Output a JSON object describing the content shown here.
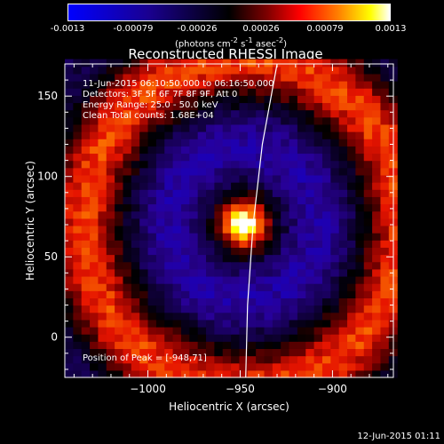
{
  "colorbar": {
    "ticks": [
      "-0.0013",
      "-0.00079",
      "-0.00026",
      "0.00026",
      "0.00079",
      "0.0013"
    ],
    "unit_html": "(photons cm<sup>-2</sup> s<sup>-1</sup> asec<sup>-2</sup>)",
    "range": [
      -0.0013,
      0.0013
    ]
  },
  "chart_data": {
    "type": "heatmap",
    "title": "Reconstructed RHESSI Image",
    "xlabel": "Heliocentric X (arcsec)",
    "ylabel": "Heliocentric Y (arcsec)",
    "xlim": [
      -1045,
      -867
    ],
    "ylim": [
      -25,
      170
    ],
    "xticks": [
      -1000,
      -950,
      -900
    ],
    "xtick_labels": [
      "−1000",
      "−950",
      "−900"
    ],
    "yticks": [
      0,
      50,
      100,
      150
    ],
    "ytick_labels": [
      "0",
      "50",
      "100",
      "150"
    ],
    "peak": [
      -948,
      71
    ],
    "limb_curve": [
      [
        -930,
        170
      ],
      [
        -938,
        120
      ],
      [
        -943,
        70
      ],
      [
        -946,
        20
      ],
      [
        -947,
        -25
      ]
    ],
    "annotations": [
      "11-Jun-2015 06:10:50.000 to 06:16:50.000",
      "Detectors: 3F 5F 6F 7F 8F 9F, Att 0",
      "Energy Range: 25.0 - 50.0 keV",
      "Clean    Total counts: 1.68E+04"
    ],
    "peak_label": "Position of Peak = [-948,71]"
  },
  "timestamp": "12-Jun-2015 01:11"
}
